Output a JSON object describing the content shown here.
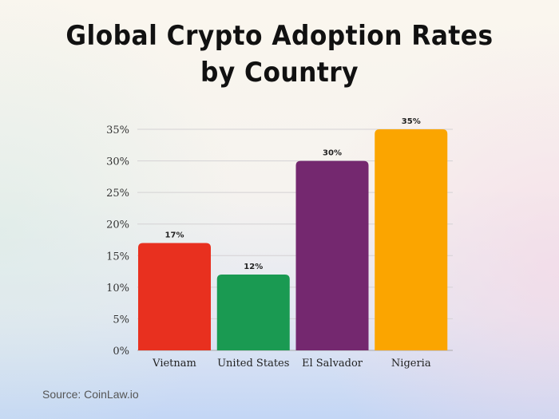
{
  "chart_data": {
    "type": "bar",
    "title": "Global Crypto Adoption Rates by Country",
    "categories": [
      "Vietnam",
      "United States",
      "El Salvador",
      "Nigeria"
    ],
    "values": [
      17,
      12,
      30,
      35
    ],
    "data_labels": [
      "17%",
      "12%",
      "30%",
      "35%"
    ],
    "colors": [
      "#e8301f",
      "#1a9a52",
      "#74286f",
      "#fba500"
    ],
    "xlabel": "",
    "ylabel": "",
    "ylim": [
      0,
      35
    ],
    "yticks": [
      0,
      5,
      10,
      15,
      20,
      25,
      30,
      35
    ],
    "ytick_labels": [
      "0%",
      "5%",
      "10%",
      "15%",
      "20%",
      "25%",
      "30%",
      "35%"
    ],
    "grid": true,
    "legend": "none"
  },
  "source": "Source: CoinLaw.io"
}
